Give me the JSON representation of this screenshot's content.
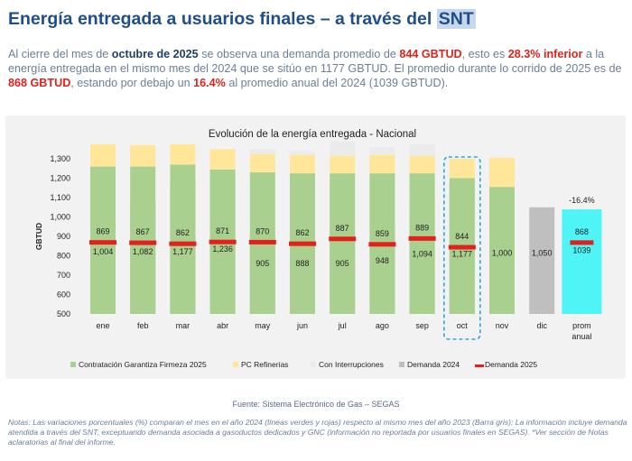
{
  "header": {
    "title_main": "Energía entregada a usuarios finales – a través del ",
    "title_highlight": "SNT"
  },
  "summary": {
    "t1": "Al cierre del mes de ",
    "b1": "octubre de 2025",
    "t2": " se observa una demanda promedio de ",
    "r1": "844 GBTUD",
    "t3": ", esto es ",
    "r2": "28.3% inferior",
    "t4": " a la energía entregada en el mismo mes del 2024 que se sitúo en 1177 GBTUD. El promedio durante lo corrido de 2025 es de ",
    "r3": "868 GBTUD",
    "t5": ", estando por debajo un ",
    "r4": "16.4%",
    "t6": " al promedio anual del 2024 (1039 GBTUD)."
  },
  "chart_data": {
    "type": "bar",
    "title": "Evolución de la energía entregada - Nacional",
    "ylabel": "GBTUD",
    "ylim": [
      500,
      1300
    ],
    "yticks": [
      "500",
      "600",
      "700",
      "800",
      "900",
      "1,000",
      "1,100",
      "1,200",
      "1,300"
    ],
    "categories": [
      "ene",
      "feb",
      "mar",
      "abr",
      "may",
      "jun",
      "jul",
      "ago",
      "sep",
      "oct",
      "nov",
      "dic",
      "prom anual"
    ],
    "series": [
      {
        "name": "Contratación Garantiza Firmeza 2025",
        "type": "stack",
        "color": "#a9d08e",
        "values": [
          760,
          760,
          770,
          745,
          730,
          725,
          725,
          725,
          725,
          700,
          655,
          null,
          null
        ]
      },
      {
        "name": "PC Refinerias",
        "type": "stack",
        "color": "#ffe699",
        "values": [
          115,
          110,
          105,
          105,
          95,
          95,
          90,
          95,
          90,
          100,
          150,
          null,
          null
        ]
      },
      {
        "name": "Con Interrupciones",
        "type": "stack",
        "color": "#ebebeb",
        "values": [
          0,
          0,
          0,
          0,
          25,
          20,
          75,
          40,
          60,
          0,
          0,
          null,
          null
        ]
      },
      {
        "name": "Demanda 2024",
        "type": "bar",
        "color": "#bfbfbf",
        "values": [
          1004,
          1082,
          1177,
          1236,
          905,
          888,
          905,
          948,
          1094,
          1177,
          1000,
          1050,
          1039
        ],
        "labels": [
          "1,004",
          "1,082",
          "1,177",
          "1,236",
          "905",
          "888",
          "905",
          "948",
          "1,094",
          "1,177",
          "1,000",
          "1,050",
          "1039"
        ]
      },
      {
        "name": "Demanda 2025",
        "type": "marker",
        "color": "#e3201b",
        "values": [
          869,
          867,
          862,
          871,
          870,
          862,
          887,
          859,
          889,
          844,
          null,
          null,
          868
        ],
        "labels": [
          "869",
          "867",
          "862",
          "871",
          "870",
          "862",
          "887",
          "859",
          "889",
          "844",
          "",
          "",
          "868"
        ]
      }
    ],
    "prom_anual_color": "#4ff4f6",
    "annotation": {
      "category": "prom anual",
      "text": "-16.4%"
    },
    "highlight_box": {
      "category": "oct",
      "color": "#29a8e0"
    }
  },
  "footer": {
    "source": "Fuente: Sistema Electrónico de Gas – SEGAS",
    "notes": "Notas: Las variaciones porcentuales (%) comparan el mes en el año 2024 (líneas verdes y rojas) respecto al mismo mes del año 2023 (Barra gris); La información incluye demanda atendida a través del SNT, exceptuando demanda asociada a gasoductos dedicados y GNC (información no reportada por usuarios finales en SEGAS). *Ver sección de Notas aclaratorias al final del informe."
  }
}
